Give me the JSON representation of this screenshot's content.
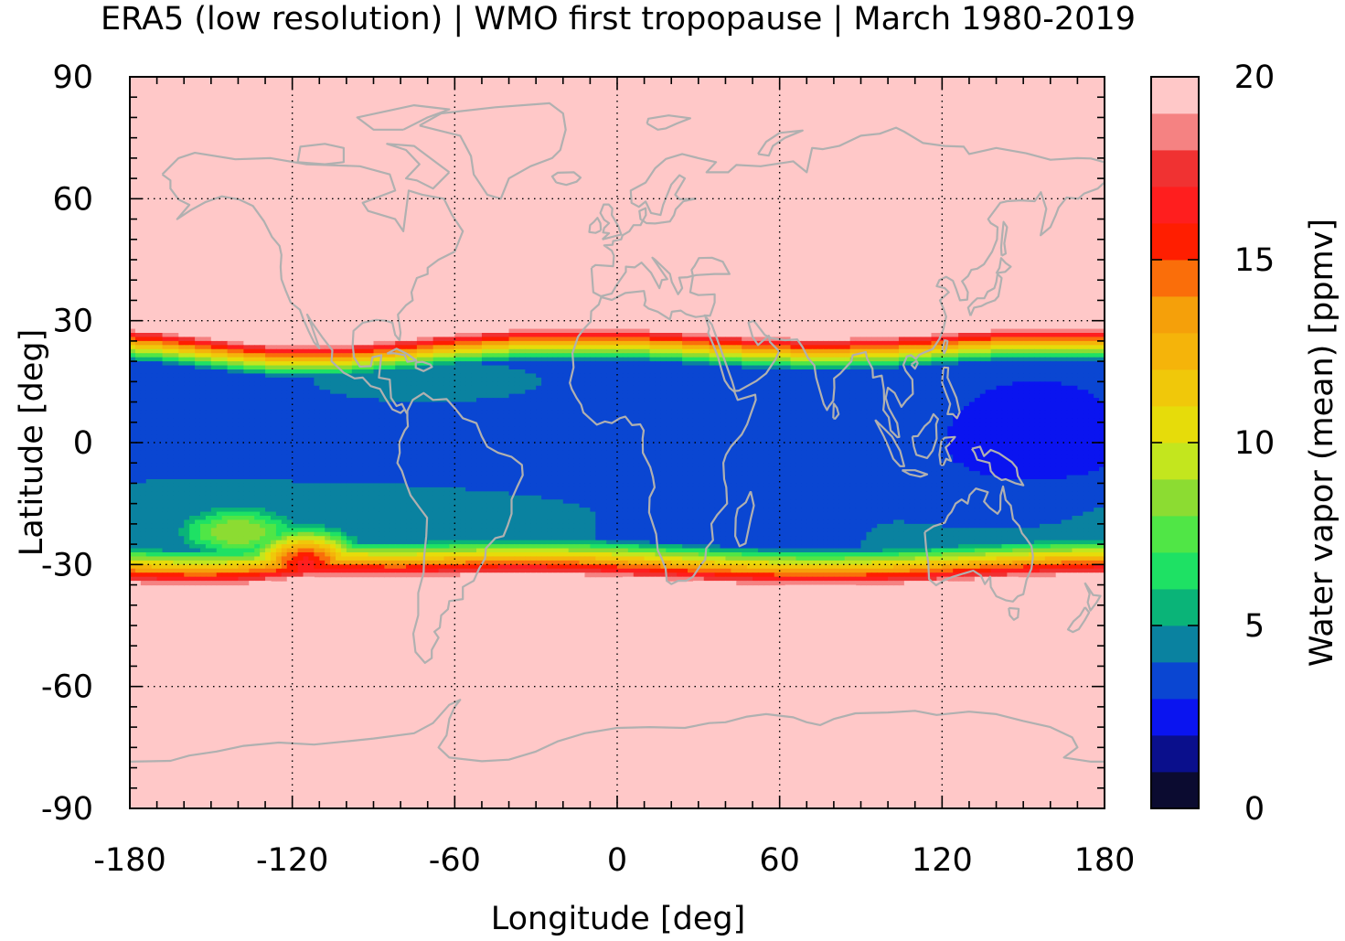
{
  "chart_data": {
    "type": "heatmap",
    "title": "ERA5 (low resolution) | WMO first tropopause | March 1980-2019",
    "xlabel": "Longitude [deg]",
    "ylabel": "Latitude [deg]",
    "xlim": [
      -180,
      180
    ],
    "ylim": [
      -90,
      90
    ],
    "xticks": [
      -180,
      -120,
      -60,
      0,
      60,
      120,
      180
    ],
    "xtick_labels": [
      "-180",
      "-120",
      "-60",
      "0",
      "60",
      "120",
      "180"
    ],
    "yticks": [
      90,
      60,
      30,
      0,
      -30,
      -60,
      -90
    ],
    "ytick_labels": [
      "90",
      "60",
      "30",
      "0",
      "-30",
      "-60",
      "-90"
    ],
    "grid": true,
    "colorbar": {
      "label": "Water vapor (mean) [ppmv]",
      "range": [
        0,
        20
      ],
      "ticks": [
        0,
        5,
        10,
        15,
        20
      ],
      "tick_labels": [
        "0",
        "5",
        "10",
        "15",
        "20"
      ],
      "levels": [
        {
          "min": 0,
          "max": 1,
          "color": "#0b0b30"
        },
        {
          "min": 1,
          "max": 2,
          "color": "#0a0f8c"
        },
        {
          "min": 2,
          "max": 3,
          "color": "#0a14f0"
        },
        {
          "min": 3,
          "max": 4,
          "color": "#0a46d2"
        },
        {
          "min": 4,
          "max": 5,
          "color": "#0a82a0"
        },
        {
          "min": 5,
          "max": 6,
          "color": "#0ab478"
        },
        {
          "min": 6,
          "max": 7,
          "color": "#1ee164"
        },
        {
          "min": 7,
          "max": 8,
          "color": "#50e646"
        },
        {
          "min": 8,
          "max": 9,
          "color": "#8cdc32"
        },
        {
          "min": 9,
          "max": 10,
          "color": "#c3e61e"
        },
        {
          "min": 10,
          "max": 11,
          "color": "#e6dc0a"
        },
        {
          "min": 11,
          "max": 12,
          "color": "#f0c80a"
        },
        {
          "min": 12,
          "max": 13,
          "color": "#f5b40a"
        },
        {
          "min": 13,
          "max": 14,
          "color": "#f5a00a"
        },
        {
          "min": 14,
          "max": 15,
          "color": "#fa6e0a"
        },
        {
          "min": 15,
          "max": 16,
          "color": "#ff1e00"
        },
        {
          "min": 16,
          "max": 17,
          "color": "#ff1e1e"
        },
        {
          "min": 17,
          "max": 18,
          "color": "#f03232"
        },
        {
          "min": 18,
          "max": 19,
          "color": "#f58282"
        },
        {
          "min": 19,
          "max": 20,
          "color": "#ffc8c8"
        }
      ]
    },
    "field": {
      "description_of_structure": "Polar and mid-latitude regions saturated (>=20 ppmv); tropical band low values, minimum over western Pacific warm pool",
      "tropical_band_north_edge_lat": 27,
      "tropical_band_south_edge_lat": -33,
      "regions": [
        {
          "lon": [
            -180,
            180
          ],
          "lat": [
            30,
            90
          ],
          "value": 20
        },
        {
          "lon": [
            -180,
            180
          ],
          "lat": [
            -90,
            -36
          ],
          "value": 20
        },
        {
          "lon": [
            -180,
            180
          ],
          "lat": [
            -15,
            15
          ],
          "value": 3.5
        },
        {
          "lon": [
            120,
            180
          ],
          "lat": [
            -18,
            20
          ],
          "value": 2.5
        },
        {
          "lon": [
            -125,
            -100
          ],
          "lat": [
            -33,
            -20
          ],
          "value": 12
        }
      ]
    },
    "colors": {
      "background_fill": "#ffc8c8",
      "coastline": "#b0b0b0",
      "gridline": "#000000"
    }
  }
}
